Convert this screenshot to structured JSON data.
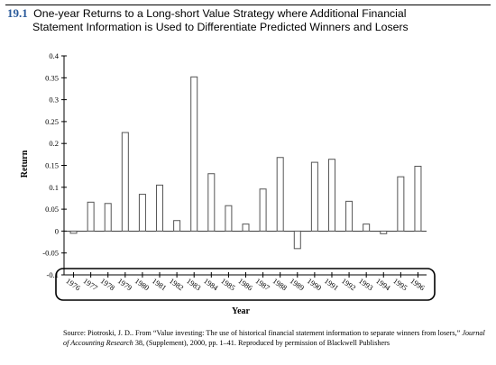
{
  "figure": {
    "number": "19.1",
    "title_line1": "One-year Returns to a Long-short Value Strategy where Additional Financial",
    "title_line2": "Statement Information is Used to Differentiate Predicted Winners and Losers"
  },
  "source": {
    "prefix": "Source: Piotroski, J. D.. From “Value investing: The use of historical financial statement information to separate winners from losers,”",
    "journal": "Journal of Accounting Research",
    "suffix": "38, (Supplement), 2000, pp. 1–41. Reproduced by permission of Blackwell Publishers"
  },
  "chart_data": {
    "type": "bar",
    "xlabel": "Year",
    "ylabel": "Return",
    "ylim": [
      -0.1,
      0.4
    ],
    "yticks": [
      -0.1,
      -0.05,
      0,
      0.05,
      0.1,
      0.15,
      0.2,
      0.25,
      0.3,
      0.35,
      0.4
    ],
    "ytick_labels": [
      "-0.1",
      "-0.05",
      "0",
      "0.05",
      "0.1",
      "0.15",
      "0.2",
      "0.25",
      "0.3",
      "0.35",
      "0.4"
    ],
    "categories": [
      "1976",
      "1977",
      "1978",
      "1979",
      "1980",
      "1981",
      "1982",
      "1983",
      "1984",
      "1985",
      "1986",
      "1987",
      "1988",
      "1989",
      "1990",
      "1991",
      "1992",
      "1993",
      "1994",
      "1995",
      "1996"
    ],
    "values": [
      -0.005,
      0.066,
      0.063,
      0.225,
      0.084,
      0.105,
      0.024,
      0.352,
      0.131,
      0.058,
      0.016,
      0.096,
      0.168,
      -0.04,
      0.157,
      0.164,
      0.068,
      0.016,
      -0.006,
      0.124,
      0.148
    ],
    "bar_color": "#ffffff",
    "bar_stroke": "#555555",
    "grid": false
  }
}
